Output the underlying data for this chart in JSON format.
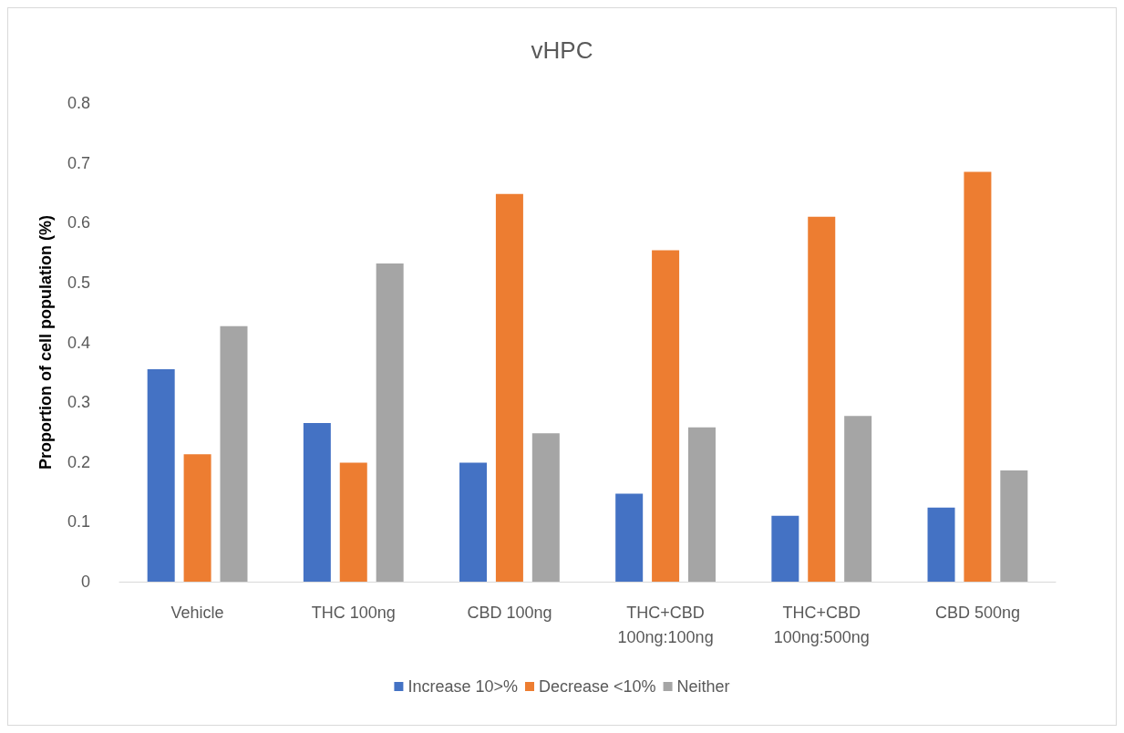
{
  "chart_data": {
    "type": "bar",
    "title": "vHPC",
    "ylabel": "Proportion of cell population (%)",
    "categories": [
      "Vehicle",
      "THC 100ng",
      "CBD 100ng",
      "THC+CBD\n100ng:100ng",
      "THC+CBD\n100ng:500ng",
      "CBD 500ng"
    ],
    "series": [
      {
        "name": "Increase 10>%",
        "color": "#4472c4",
        "values": [
          0.355,
          0.265,
          0.199,
          0.147,
          0.11,
          0.124
        ]
      },
      {
        "name": "Decrease <10%",
        "color": "#ed7d31",
        "values": [
          0.213,
          0.199,
          0.648,
          0.554,
          0.61,
          0.685
        ]
      },
      {
        "name": "Neither",
        "color": "#a5a5a5",
        "values": [
          0.427,
          0.532,
          0.248,
          0.258,
          0.277,
          0.186
        ]
      }
    ],
    "ylim": [
      0,
      0.8
    ],
    "yticks": [
      0,
      0.1,
      0.2,
      0.3,
      0.4,
      0.5,
      0.6,
      0.7,
      0.8
    ],
    "grid": false,
    "legend": "bottom"
  }
}
